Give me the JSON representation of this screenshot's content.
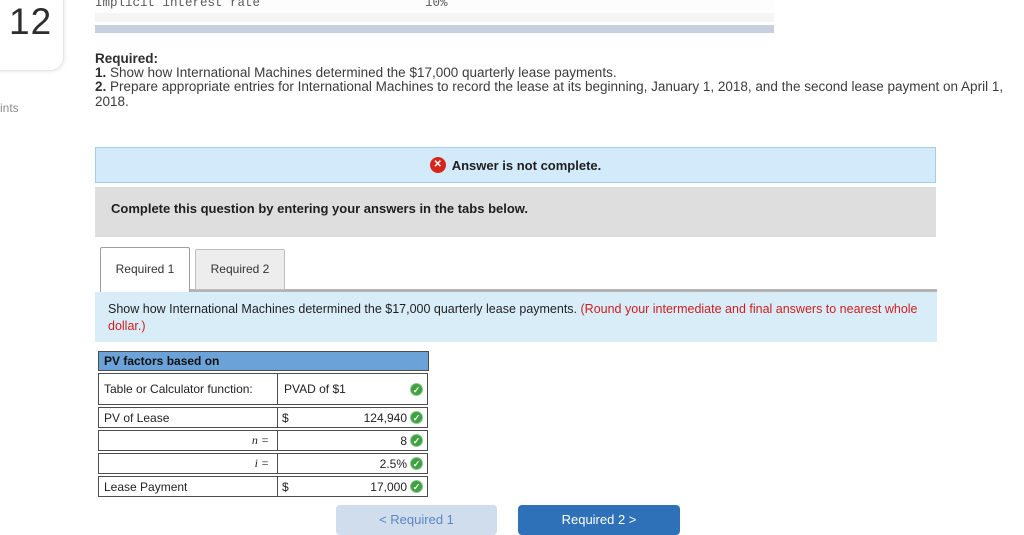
{
  "question": {
    "number": "12",
    "points_label_partial": "ints"
  },
  "top_strip": {
    "clipped_label": "Implicit interest rate",
    "clipped_value": "10%"
  },
  "required": {
    "heading": "Required:",
    "item1_num": "1.",
    "item1_text": " Show how International Machines determined the $17,000 quarterly lease payments.",
    "item2_num": "2.",
    "item2_text": " Prepare appropriate entries for International Machines to record the lease at its beginning, January 1, 2018, and the second lease payment on April 1, 2018."
  },
  "status_banner": {
    "icon": "x-circle-icon",
    "icon_glyph": "✕",
    "icon_color": "#d6261c",
    "text": "Answer is not complete.",
    "bg_color": "#d3eafa"
  },
  "gray_banner": {
    "text": "Complete this question by entering your answers in the tabs below."
  },
  "tabs": [
    {
      "label": "Required 1",
      "active": true
    },
    {
      "label": "Required 2",
      "active": false
    }
  ],
  "tab_instruction": {
    "text_black": "Show how International Machines determined the $17,000 quarterly lease payments. ",
    "text_red": "(Round your intermediate and final answers to nearest whole dollar.)"
  },
  "pv_table": {
    "header": "PV factors based on",
    "header_bg": "#6ba3d9",
    "check_color": "#3fa142",
    "check_glyph": "✓",
    "rows": [
      {
        "label": "Table or Calculator function:",
        "prefix": "",
        "value": "PVAD of $1"
      },
      {
        "label": "PV of Lease",
        "prefix": "$",
        "value": "124,940"
      },
      {
        "label": "n =",
        "prefix": "",
        "value": "8"
      },
      {
        "label": "i =",
        "prefix": "",
        "value": "2.5%"
      },
      {
        "label": "Lease Payment",
        "prefix": "$",
        "value": "17,000"
      }
    ]
  },
  "footer_buttons": {
    "prev_label": "< Required 1",
    "next_label": "Required 2 >"
  }
}
